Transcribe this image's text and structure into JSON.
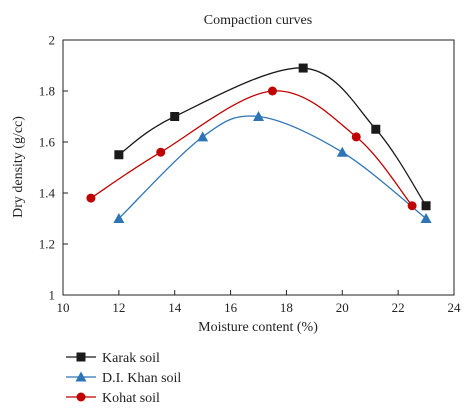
{
  "chart_data": {
    "type": "line",
    "title": "Compaction curves",
    "xlabel": "Moisture content (%)",
    "ylabel": "Dry density (g/cc)",
    "xlim": [
      10,
      24
    ],
    "ylim": [
      1,
      2
    ],
    "xticks": [
      "10",
      "12",
      "14",
      "16",
      "18",
      "20",
      "22",
      "24"
    ],
    "yticks": [
      "1",
      "1.2",
      "1.4",
      "1.6",
      "1.8",
      "2"
    ],
    "grid": false,
    "legend_position": "bottom-left, below the plot",
    "series": [
      {
        "name": "Karak soil",
        "marker": "square",
        "color": "#1a1a1a",
        "points": [
          [
            12,
            1.55
          ],
          [
            14,
            1.7
          ],
          [
            18.6,
            1.89
          ],
          [
            21.2,
            1.65
          ],
          [
            23,
            1.35
          ]
        ]
      },
      {
        "name": "D.I. Khan soil",
        "marker": "triangle",
        "color": "#2e75b6",
        "points": [
          [
            12,
            1.3
          ],
          [
            15,
            1.62
          ],
          [
            17,
            1.7
          ],
          [
            20,
            1.56
          ],
          [
            23,
            1.3
          ]
        ]
      },
      {
        "name": "Kohat soil",
        "marker": "circle",
        "color": "#c00000",
        "points": [
          [
            11,
            1.38
          ],
          [
            13.5,
            1.56
          ],
          [
            17.5,
            1.8
          ],
          [
            20.5,
            1.62
          ],
          [
            22.5,
            1.35
          ]
        ]
      }
    ]
  }
}
